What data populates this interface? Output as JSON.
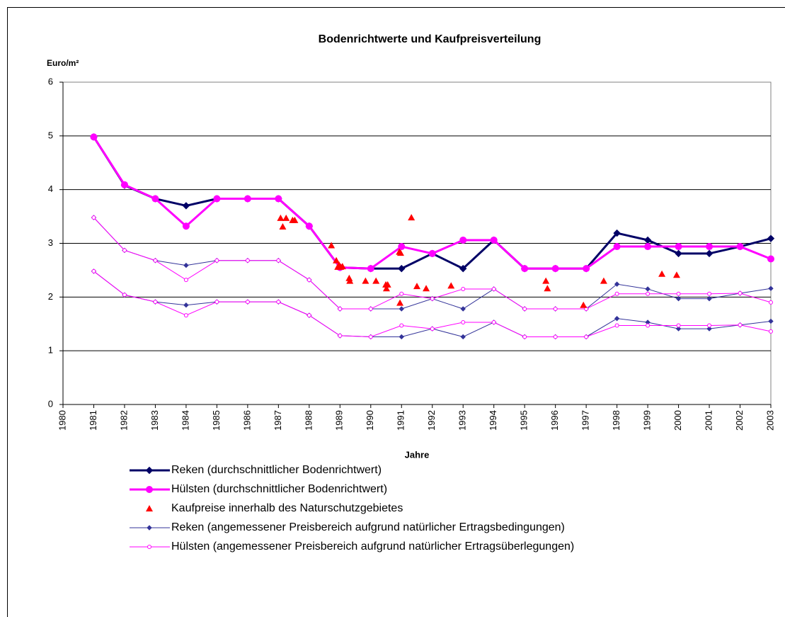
{
  "chart_data": {
    "type": "line",
    "title": "Bodenrichtwerte und Kaufpreisverteilung",
    "ylabel": "Euro/m²",
    "xlabel": "Jahre",
    "xlim": [
      1980,
      2003
    ],
    "xticks": [
      1980,
      1981,
      1982,
      1983,
      1984,
      1985,
      1986,
      1987,
      1988,
      1989,
      1990,
      1991,
      1992,
      1993,
      1994,
      1995,
      1996,
      1997,
      1998,
      1999,
      2000,
      2001,
      2002,
      2003
    ],
    "ylim": [
      0,
      6
    ],
    "yticks": [
      0,
      1,
      2,
      3,
      4,
      5,
      6
    ],
    "grid": true,
    "x": [
      1981,
      1982,
      1983,
      1984,
      1985,
      1986,
      1987,
      1988,
      1989,
      1990,
      1991,
      1992,
      1993,
      1994,
      1995,
      1996,
      1997,
      1998,
      1999,
      2000,
      2001,
      2002,
      2003
    ],
    "series": [
      {
        "name": "Reken (durchschnittlicher Bodenrichtwert)",
        "color": "#000066",
        "marker": "diamond",
        "width": 3,
        "values": [
          4.98,
          4.08,
          3.83,
          3.7,
          3.83,
          3.83,
          3.83,
          3.32,
          2.55,
          2.53,
          2.53,
          2.81,
          2.53,
          3.06,
          2.53,
          2.53,
          2.53,
          3.19,
          3.06,
          2.81,
          2.81,
          2.94,
          3.09
        ]
      },
      {
        "name": "Hülsten (durchschnittlicher Bodenrichtwert)",
        "color": "#ff00ff",
        "marker": "circle",
        "width": 3,
        "values": [
          4.98,
          4.09,
          3.83,
          3.32,
          3.83,
          3.83,
          3.83,
          3.32,
          2.55,
          2.53,
          2.94,
          2.81,
          3.06,
          3.06,
          2.53,
          2.53,
          2.53,
          2.94,
          2.94,
          2.94,
          2.94,
          2.94,
          2.71
        ]
      },
      {
        "name": "Kaufpreise innerhalb des Naturschutzgebietes",
        "color": "#ff0000",
        "marker": "triangle",
        "type": "scatter",
        "x": [
          1987.07,
          1987.25,
          1987.14,
          1987.46,
          1987.53,
          1988.72,
          1988.88,
          1988.93,
          1988.97,
          1989.02,
          1989.08,
          1989.3,
          1989.32,
          1989.83,
          1990.17,
          1990.49,
          1990.51,
          1990.55,
          1990.93,
          1990.97,
          1990.95,
          1991.32,
          1991.5,
          1991.8,
          1992.61,
          1995.69,
          1995.74,
          1996.91,
          1997.57,
          1999.46,
          1999.94
        ],
        "values": [
          3.47,
          3.47,
          3.31,
          3.43,
          3.43,
          2.96,
          2.68,
          2.56,
          2.6,
          2.56,
          2.57,
          2.35,
          2.3,
          2.3,
          2.3,
          2.23,
          2.16,
          2.23,
          2.84,
          2.82,
          1.89,
          3.48,
          2.2,
          2.16,
          2.21,
          2.3,
          2.16,
          1.85,
          2.3,
          2.43,
          2.41
        ]
      },
      {
        "name": "Reken (angemessener Preisbereich aufgrund natürlicher Ertragsbedingungen)",
        "color": "#333399",
        "marker": "diamond",
        "width": 1,
        "low": [
          2.48,
          2.04,
          1.91,
          1.85,
          1.91,
          1.91,
          1.91,
          1.66,
          1.28,
          1.26,
          1.26,
          1.41,
          1.26,
          1.53,
          1.26,
          1.26,
          1.26,
          1.6,
          1.53,
          1.41,
          1.41,
          1.48,
          1.55
        ],
        "high": [
          3.48,
          2.87,
          2.68,
          2.59,
          2.68,
          2.68,
          2.68,
          2.32,
          1.78,
          1.78,
          1.78,
          1.97,
          1.78,
          2.15,
          1.78,
          1.78,
          1.78,
          2.24,
          2.15,
          1.97,
          1.97,
          2.07,
          2.16
        ]
      },
      {
        "name": "Hülsten (angemessener Preisbereich aufgrund natürlicher Ertragsüberlegungen)",
        "color": "#ff00ff",
        "marker": "open-circle",
        "width": 1,
        "low": [
          2.48,
          2.04,
          1.91,
          1.66,
          1.91,
          1.91,
          1.91,
          1.66,
          1.28,
          1.26,
          1.47,
          1.41,
          1.53,
          1.53,
          1.26,
          1.26,
          1.26,
          1.47,
          1.47,
          1.47,
          1.47,
          1.48,
          1.36
        ],
        "high": [
          3.48,
          2.87,
          2.68,
          2.32,
          2.68,
          2.68,
          2.68,
          2.32,
          1.78,
          1.78,
          2.06,
          1.97,
          2.15,
          2.15,
          1.78,
          1.78,
          1.78,
          2.06,
          2.06,
          2.06,
          2.06,
          2.07,
          1.9
        ]
      }
    ]
  }
}
